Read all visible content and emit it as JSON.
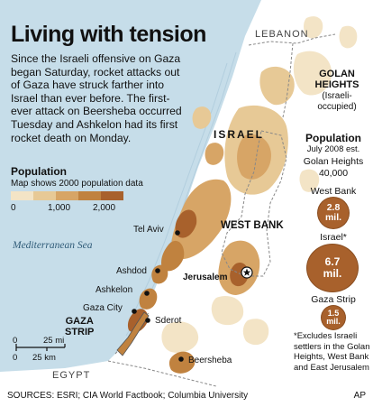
{
  "headline": "Living with tension",
  "body": "Since the Israeli offensive on Gaza began Saturday, rocket attacks out of Gaza have struck farther into Israel than ever before. The first-ever attack on Beersheba occurred Tuesday and Ashkelon had its first rocket death on Monday.",
  "legend": {
    "title": "Population",
    "note": "Map shows 2000 population data",
    "ticks": [
      "0",
      "1,000",
      "2,000"
    ],
    "colors": [
      "#f3e4c6",
      "#e7c996",
      "#d7a566",
      "#c0823f",
      "#a8612c"
    ]
  },
  "regions": {
    "lebanon": "LEBANON",
    "golan_heights": [
      "GOLAN",
      "HEIGHTS"
    ],
    "golan_note": [
      "(Israeli-",
      "occupied)"
    ],
    "israel": "ISRAEL",
    "west_bank": "WEST BANK",
    "gaza_strip": [
      "GAZA",
      "STRIP"
    ],
    "egypt": "EGYPT",
    "sea": "Mediterranean Sea"
  },
  "cities": {
    "tel_aviv": "Tel Aviv",
    "ashdod": "Ashdod",
    "ashkelon": "Ashkelon",
    "gaza_city": "Gaza City",
    "sderot": "Sderot",
    "jerusalem": "Jerusalem",
    "beersheba": "Beersheba"
  },
  "population": {
    "title": "Population",
    "subtitle": "July 2008 est.",
    "golan": {
      "label": "Golan Heights",
      "value": "40,000"
    },
    "west_bank": {
      "label": "West Bank",
      "value": "2.8",
      "unit": "mil."
    },
    "israel": {
      "label": "Israel*",
      "value": "6.7",
      "unit": "mil."
    },
    "gaza": {
      "label": "Gaza Strip",
      "value": "1.5",
      "unit": "mil."
    }
  },
  "footnote": "*Excludes Israeli settlers in the Golan Heights, West Bank and East Jerusalem",
  "scale": {
    "mi": "25 mi",
    "km": "25 km",
    "zero": "0"
  },
  "sources": "SOURCES: ESRI; CIA World Factbook; Columbia University",
  "credit": "AP",
  "colors": {
    "sea": "#c6dde9",
    "land": "#ffffff",
    "bubble": "#a8612c",
    "border": "#888888"
  }
}
